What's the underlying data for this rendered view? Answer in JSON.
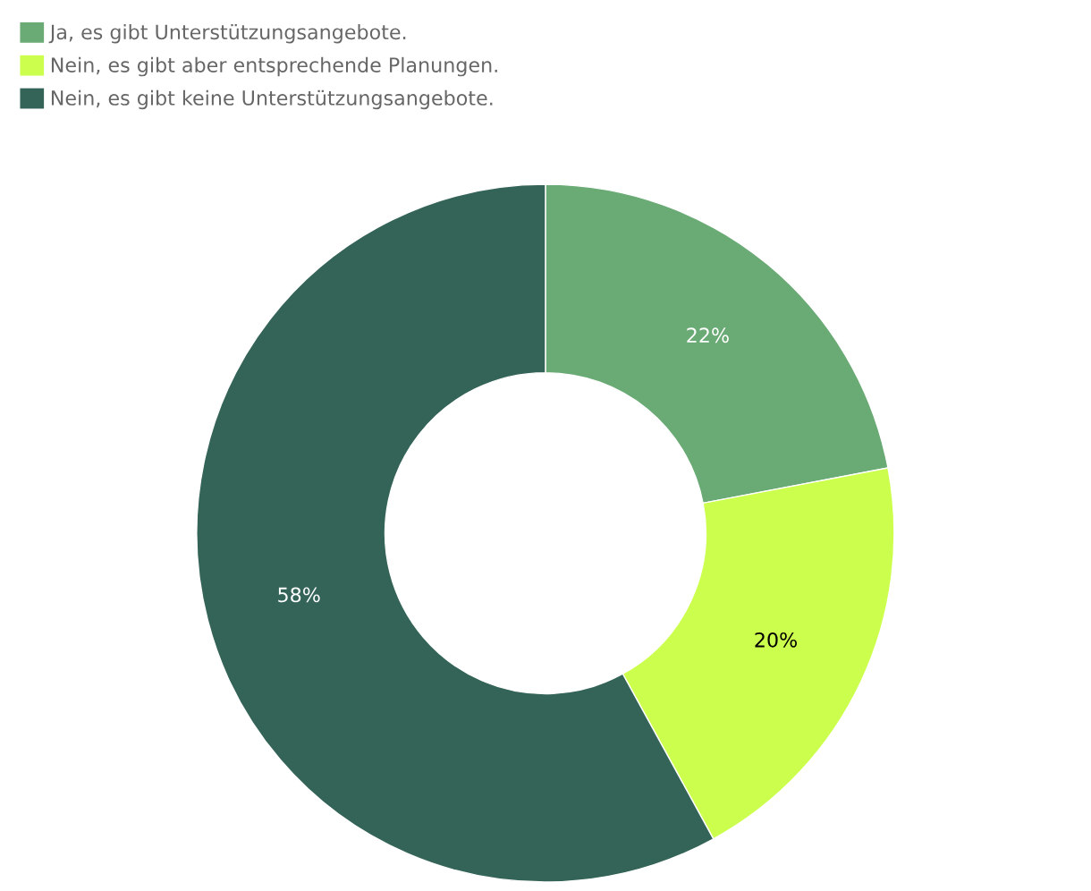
{
  "chart_data": {
    "type": "donut",
    "categories": [
      "Ja, es gibt Unterstützungsangebote.",
      "Nein, es gibt aber entsprechende Planungen.",
      "Nein, es gibt keine Unterstützungsangebote."
    ],
    "values": [
      22,
      20,
      58
    ],
    "colors": [
      "#6aaa74",
      "#ccff4d",
      "#346358"
    ],
    "value_labels": [
      "22%",
      "20%",
      "58%"
    ],
    "legend": "top left"
  }
}
